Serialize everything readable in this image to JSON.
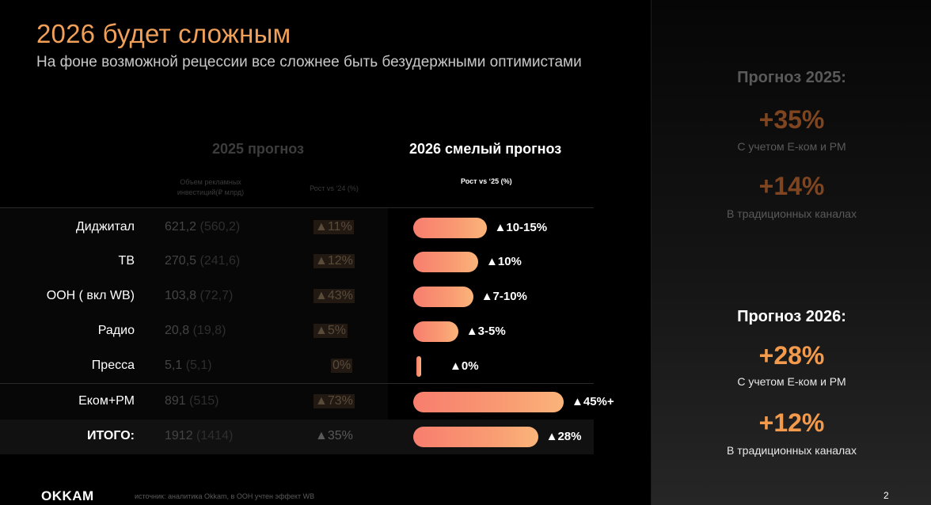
{
  "header": {
    "title": "2026 будет сложным",
    "subtitle": "На фоне возможной рецессии все сложнее быть безудержными оптимистами"
  },
  "table": {
    "head_2025": "2025 прогноз",
    "head_2026": "2026 смелый прогноз",
    "sub_volume": "Объем рекламных инвестиций(₽ млрд)",
    "sub_growth_24": "Рост  vs ‘24 (%)",
    "sub_growth_25": "Рост  vs ‘25 (%)",
    "rows": [
      {
        "label": "Диджитал",
        "volume": "621,2",
        "prev": "(560,2)",
        "growth_24": "▲11%",
        "growth_26": "▲10-15%",
        "bar_value": 12.5
      },
      {
        "label": "ТВ",
        "volume": "270,5",
        "prev": "(241,6)",
        "growth_24": "▲12%",
        "growth_26": "▲10%",
        "bar_value": 10
      },
      {
        "label": "ООН ( вкл WB)",
        "volume": "103,8",
        "prev": "(72,7)",
        "growth_24": "▲43%",
        "growth_26": "▲7-10%",
        "bar_value": 8.5
      },
      {
        "label": "Радио",
        "volume": "20,8",
        "prev": "(19,8)",
        "growth_24": "▲5%",
        "growth_26": "▲3-5%",
        "bar_value": 4
      },
      {
        "label": "Пресса",
        "volume": "5,1",
        "prev": "(5,1)",
        "growth_24": "0%",
        "growth_26": "▲0%",
        "bar_value": 0
      },
      {
        "label": "Еком+РМ",
        "volume": "891",
        "prev": "(515)",
        "growth_24": "▲73%",
        "growth_26": "▲45%+",
        "bar_value": 45
      }
    ],
    "total": {
      "label": "ИТОГО:",
      "volume": "1912",
      "prev": "(1414)",
      "growth_24": "▲35%",
      "growth_26": "▲28%",
      "bar_value": 28
    }
  },
  "panel": {
    "head_2025": "Прогноз 2025:",
    "big_2025_a": "+35%",
    "note_2025_a": "С учетом Е-ком и РМ",
    "big_2025_b": "+14%",
    "note_2025_b": "В традиционных каналах",
    "head_2026": "Прогноз 2026:",
    "big_2026_a": "+28%",
    "note_2026_a": "С учетом Е-ком и РМ",
    "big_2026_b": "+12%",
    "note_2026_b": "В традиционных каналах"
  },
  "footer": {
    "logo": "OKKAM",
    "source": "источник: аналитика Okkam, в ООН учтен эффект WB",
    "page": "2"
  },
  "colors": {
    "accent": "#f0a058",
    "orange_big": "#f39a4c",
    "brown_big": "#8a4a22"
  }
}
